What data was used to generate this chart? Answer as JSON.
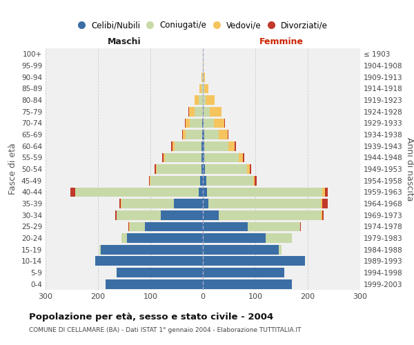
{
  "age_groups": [
    "0-4",
    "5-9",
    "10-14",
    "15-19",
    "20-24",
    "25-29",
    "30-34",
    "35-39",
    "40-44",
    "45-49",
    "50-54",
    "55-59",
    "60-64",
    "65-69",
    "70-74",
    "75-79",
    "80-84",
    "85-89",
    "90-94",
    "95-99",
    "100+"
  ],
  "birth_years": [
    "1999-2003",
    "1994-1998",
    "1989-1993",
    "1984-1988",
    "1979-1983",
    "1974-1978",
    "1969-1973",
    "1964-1968",
    "1959-1963",
    "1954-1958",
    "1949-1953",
    "1944-1948",
    "1939-1943",
    "1934-1938",
    "1929-1933",
    "1924-1928",
    "1919-1923",
    "1914-1918",
    "1909-1913",
    "1904-1908",
    "≤ 1903"
  ],
  "male_celibi": [
    185,
    165,
    205,
    195,
    145,
    110,
    80,
    55,
    8,
    5,
    3,
    3,
    2,
    1,
    1,
    0,
    0,
    0,
    0,
    0,
    0
  ],
  "male_coniugati": [
    0,
    0,
    0,
    2,
    10,
    30,
    85,
    100,
    235,
    95,
    85,
    70,
    52,
    32,
    24,
    16,
    8,
    3,
    1,
    0,
    0
  ],
  "male_vedovi": [
    0,
    0,
    0,
    0,
    0,
    1,
    0,
    1,
    1,
    1,
    1,
    2,
    4,
    5,
    8,
    10,
    8,
    3,
    1,
    0,
    0
  ],
  "male_divorziati": [
    0,
    0,
    0,
    0,
    0,
    1,
    2,
    3,
    8,
    2,
    3,
    3,
    2,
    2,
    1,
    1,
    0,
    0,
    0,
    0,
    0
  ],
  "female_nubili": [
    170,
    155,
    195,
    145,
    120,
    85,
    30,
    10,
    8,
    6,
    4,
    3,
    3,
    2,
    1,
    1,
    0,
    0,
    0,
    0,
    0
  ],
  "female_coniugate": [
    0,
    0,
    0,
    5,
    50,
    100,
    195,
    215,
    220,
    90,
    80,
    65,
    46,
    28,
    20,
    12,
    5,
    2,
    1,
    0,
    0
  ],
  "female_vedove": [
    0,
    0,
    0,
    0,
    0,
    1,
    2,
    3,
    5,
    3,
    5,
    8,
    12,
    18,
    20,
    22,
    18,
    8,
    3,
    1,
    0
  ],
  "female_divorziate": [
    0,
    0,
    0,
    0,
    0,
    1,
    3,
    10,
    5,
    3,
    3,
    3,
    2,
    1,
    1,
    1,
    0,
    0,
    0,
    0,
    0
  ],
  "colors_celibi": "#3A6EA5",
  "colors_coniugati": "#C8D9A8",
  "colors_vedovi": "#F5C45E",
  "colors_divorziati": "#C0392B",
  "xlim": 300,
  "title": "Popolazione per età, sesso e stato civile - 2004",
  "subtitle": "COMUNE DI CELLAMARE (BA) - Dati ISTAT 1° gennaio 2004 - Elaborazione TUTTITALIA.IT",
  "ylabel_left": "Fasce di età",
  "ylabel_right": "Anni di nascita",
  "label_maschi": "Maschi",
  "label_femmine": "Femmine",
  "legend_labels": [
    "Celibi/Nubili",
    "Coniugati/e",
    "Vedovi/e",
    "Divorziati/e"
  ],
  "bg_color": "#f0f0f0",
  "grid_color": "#cccccc"
}
